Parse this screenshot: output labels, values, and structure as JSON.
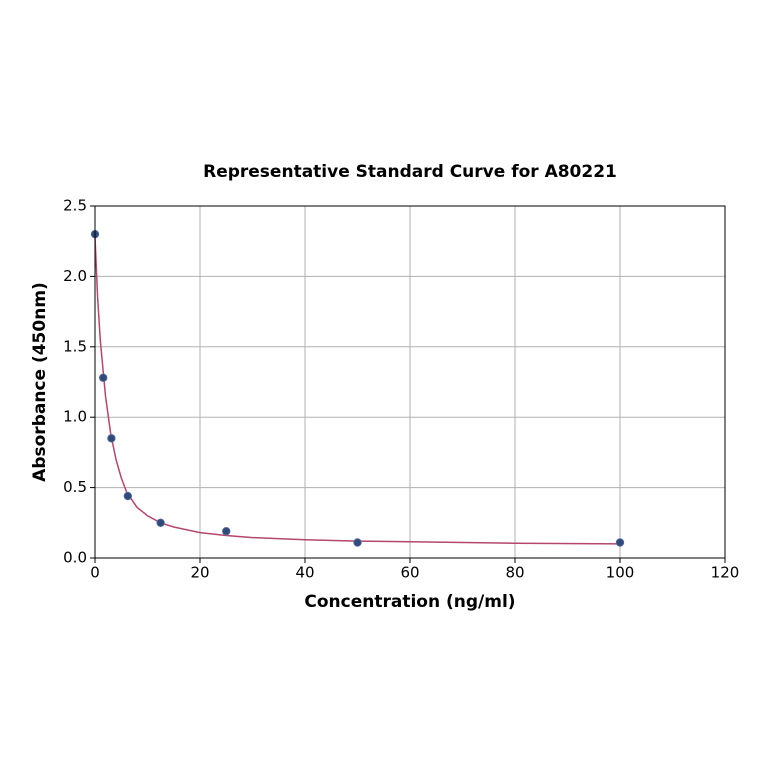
{
  "chart_data": {
    "type": "scatter",
    "title": "Representative Standard Curve for A80221",
    "x_label": "Concentration (ng/ml)",
    "y_label": "Absorbance (450nm)",
    "xlim": [
      0,
      120
    ],
    "xticks": [
      0,
      20,
      40,
      60,
      80,
      100,
      120
    ],
    "ylim": [
      0,
      2.5
    ],
    "yticks": [
      {
        "value": 0,
        "label": "0.0"
      },
      0.5,
      {
        "value": 1,
        "label": "1.0"
      },
      1.5,
      {
        "value": 2,
        "label": "2.0"
      },
      2.5
    ],
    "grid": true,
    "series": [
      {
        "style": "markers",
        "color": "#2f4b7c",
        "x": [
          0,
          1.5625,
          3.125,
          6.25,
          12.5,
          25,
          50,
          100
        ],
        "values": [
          2.3,
          1.28,
          0.85,
          0.44,
          0.25,
          0.19,
          0.11,
          0.11
        ]
      },
      {
        "style": "line",
        "color": "#b5466e",
        "x": [
          0,
          0.5,
          1,
          2,
          3,
          4,
          5,
          6,
          8,
          10,
          12.5,
          15,
          20,
          25,
          30,
          40,
          50,
          60,
          80,
          100
        ],
        "values": [
          2.28,
          1.85,
          1.55,
          1.15,
          0.88,
          0.7,
          0.57,
          0.47,
          0.36,
          0.3,
          0.25,
          0.22,
          0.18,
          0.16,
          0.145,
          0.13,
          0.12,
          0.115,
          0.105,
          0.1
        ]
      }
    ]
  }
}
